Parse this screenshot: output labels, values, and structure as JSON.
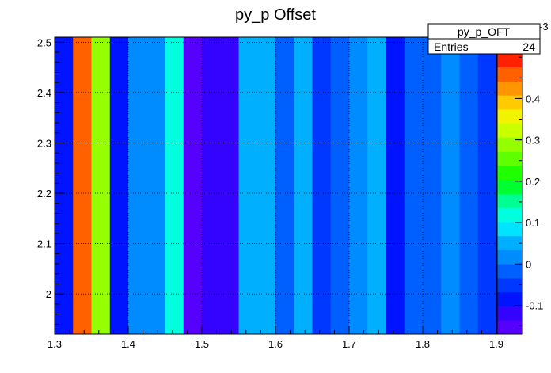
{
  "chart_data": {
    "type": "heatmap",
    "title": "py_p Offset",
    "xlabel": "",
    "ylabel": "",
    "xlim": [
      1.3,
      1.9
    ],
    "ylim": [
      1.92,
      2.51
    ],
    "x_ticks": [
      "1.3",
      "1.4",
      "1.5",
      "1.6",
      "1.7",
      "1.8",
      "1.9"
    ],
    "y_ticks": [
      "2",
      "2.1",
      "2.2",
      "2.3",
      "2.4",
      "2.5"
    ],
    "grid": true,
    "x_bin_edges": [
      1.3,
      1.325,
      1.35,
      1.375,
      1.4,
      1.425,
      1.45,
      1.475,
      1.5,
      1.525,
      1.55,
      1.575,
      1.6,
      1.625,
      1.65,
      1.675,
      1.7,
      1.725,
      1.75,
      1.775,
      1.8,
      1.825,
      1.85,
      1.875,
      1.9
    ],
    "values": [
      -0.08,
      0.47,
      0.3,
      -0.08,
      0.0,
      0.0,
      0.12,
      -0.15,
      -0.11,
      -0.11,
      0.05,
      0.05,
      -0.03,
      0.05,
      -0.05,
      -0.01,
      0.02,
      0.05,
      -0.08,
      -0.03,
      -0.02,
      0.0,
      -0.03,
      -0.06
    ],
    "colorbar": {
      "ticks": [
        "-0.1",
        "0",
        "0.1",
        "0.2",
        "0.3",
        "0.4"
      ],
      "range": [
        -0.17,
        0.51
      ],
      "exponent_label": "-3"
    },
    "stats_box": {
      "name": "py_p_OFT",
      "entries_label": "Entries",
      "entries_value": "24"
    }
  }
}
